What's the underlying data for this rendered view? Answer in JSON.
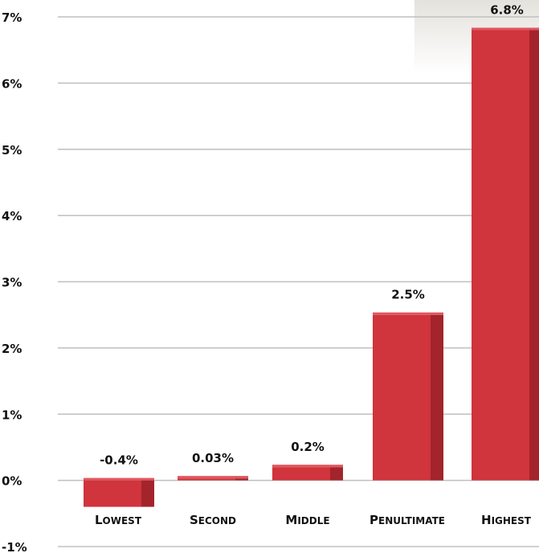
{
  "chart_data": {
    "type": "bar",
    "categories": [
      "Lowest",
      "Second",
      "Middle",
      "Penultimate",
      "Highest"
    ],
    "values": [
      -0.4,
      0.03,
      0.2,
      2.5,
      6.8
    ],
    "value_labels": [
      "-0.4%",
      "0.03%",
      "0.2%",
      "2.5%",
      "6.8%"
    ],
    "y_ticks": [
      7,
      6,
      5,
      4,
      3,
      2,
      1,
      0,
      -1
    ],
    "y_tick_labels": [
      "7%",
      "6%",
      "5%",
      "4%",
      "3%",
      "2%",
      "1%",
      "0%",
      "-1%"
    ],
    "ylim": [
      -1,
      7
    ],
    "grid": true,
    "colors": {
      "bar_front": "#d0343c",
      "bar_side": "#a3242b",
      "bar_top": "#e0575e",
      "grid": "#bfbfbf"
    }
  }
}
